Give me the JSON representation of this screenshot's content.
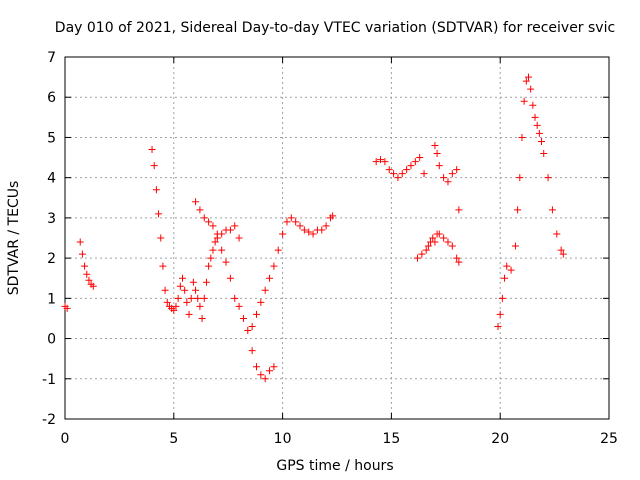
{
  "chart_data": {
    "type": "scatter",
    "title": "Day 010 of 2021, Sidereal Day-to-day VTEC variation (SDTVAR) for receiver svic",
    "xlabel": "GPS time / hours",
    "ylabel": "SDTVAR / TECUs",
    "xlim": [
      0,
      25
    ],
    "ylim": [
      -2,
      7
    ],
    "xticks": [
      0,
      5,
      10,
      15,
      20,
      25
    ],
    "yticks": [
      -2,
      -1,
      0,
      1,
      2,
      3,
      4,
      5,
      6,
      7
    ],
    "grid": true,
    "marker": "plus",
    "color": "#ff0000",
    "series": [
      {
        "name": "svic",
        "x": [
          0.0,
          0.1,
          0.7,
          0.8,
          0.9,
          1.0,
          1.1,
          1.2,
          1.3,
          4.0,
          4.1,
          4.2,
          4.3,
          4.4,
          4.5,
          4.6,
          4.7,
          4.8,
          4.9,
          5.0,
          5.1,
          5.2,
          5.3,
          5.4,
          5.5,
          5.6,
          5.7,
          5.8,
          5.9,
          6.0,
          6.1,
          6.2,
          6.3,
          6.4,
          6.5,
          6.6,
          6.7,
          6.8,
          6.9,
          7.0,
          7.2,
          7.4,
          7.6,
          7.8,
          8.0,
          6.0,
          6.2,
          6.4,
          6.6,
          6.8,
          7.0,
          7.2,
          7.4,
          7.6,
          7.8,
          8.0,
          8.2,
          8.4,
          8.6,
          8.8,
          9.0,
          9.2,
          9.4,
          9.6,
          8.6,
          8.8,
          9.0,
          9.2,
          9.4,
          9.6,
          9.8,
          10.0,
          10.2,
          10.4,
          10.6,
          10.8,
          11.0,
          11.2,
          11.4,
          11.6,
          11.8,
          12.0,
          12.2,
          12.3,
          14.3,
          14.5,
          14.7,
          14.9,
          15.1,
          15.3,
          15.5,
          15.7,
          15.9,
          16.1,
          16.3,
          16.5,
          16.2,
          16.4,
          16.6,
          16.7,
          16.8,
          16.9,
          17.0,
          17.1,
          17.2,
          17.4,
          17.6,
          17.8,
          18.0,
          18.1,
          17.0,
          17.1,
          17.2,
          17.4,
          17.6,
          17.8,
          18.0,
          18.1,
          19.9,
          20.0,
          20.1,
          20.2,
          20.3,
          20.5,
          20.7,
          20.8,
          20.9,
          21.0,
          21.1,
          21.2,
          21.3,
          21.4,
          21.5,
          21.6,
          21.7,
          21.8,
          21.9,
          22.0,
          22.2,
          22.4,
          22.6,
          22.8,
          22.9
        ],
        "y": [
          0.8,
          0.75,
          2.4,
          2.1,
          1.8,
          1.6,
          1.45,
          1.35,
          1.3,
          4.7,
          4.3,
          3.7,
          3.1,
          2.5,
          1.8,
          1.2,
          0.9,
          0.8,
          0.75,
          0.7,
          0.8,
          1.0,
          1.3,
          1.5,
          1.2,
          0.9,
          0.6,
          1.0,
          1.4,
          1.2,
          1.0,
          0.8,
          0.5,
          1.0,
          1.4,
          1.8,
          2.0,
          2.2,
          2.4,
          2.6,
          2.6,
          2.7,
          2.7,
          2.8,
          2.5,
          3.4,
          3.2,
          3.0,
          2.9,
          2.8,
          2.5,
          2.2,
          1.9,
          1.5,
          1.0,
          0.8,
          0.5,
          0.2,
          -0.3,
          -0.7,
          -0.9,
          -1.0,
          -0.8,
          -0.7,
          0.3,
          0.6,
          0.9,
          1.2,
          1.5,
          1.8,
          2.2,
          2.6,
          2.9,
          3.0,
          2.9,
          2.8,
          2.7,
          2.65,
          2.6,
          2.7,
          2.7,
          2.8,
          3.0,
          3.05,
          4.4,
          4.45,
          4.4,
          4.2,
          4.1,
          4.0,
          4.1,
          4.2,
          4.3,
          4.4,
          4.5,
          4.1,
          2.0,
          2.1,
          2.2,
          2.3,
          2.4,
          2.5,
          2.4,
          2.6,
          2.6,
          2.5,
          2.4,
          2.3,
          2.0,
          1.9,
          4.8,
          4.6,
          4.3,
          4.0,
          3.9,
          4.1,
          4.2,
          3.2,
          0.3,
          0.6,
          1.0,
          1.5,
          1.8,
          1.7,
          2.3,
          3.2,
          4.0,
          5.0,
          5.9,
          6.4,
          6.5,
          6.2,
          5.8,
          5.5,
          5.3,
          5.1,
          4.9,
          4.6,
          4.0,
          3.2,
          2.6,
          2.2,
          2.1
        ]
      }
    ]
  }
}
